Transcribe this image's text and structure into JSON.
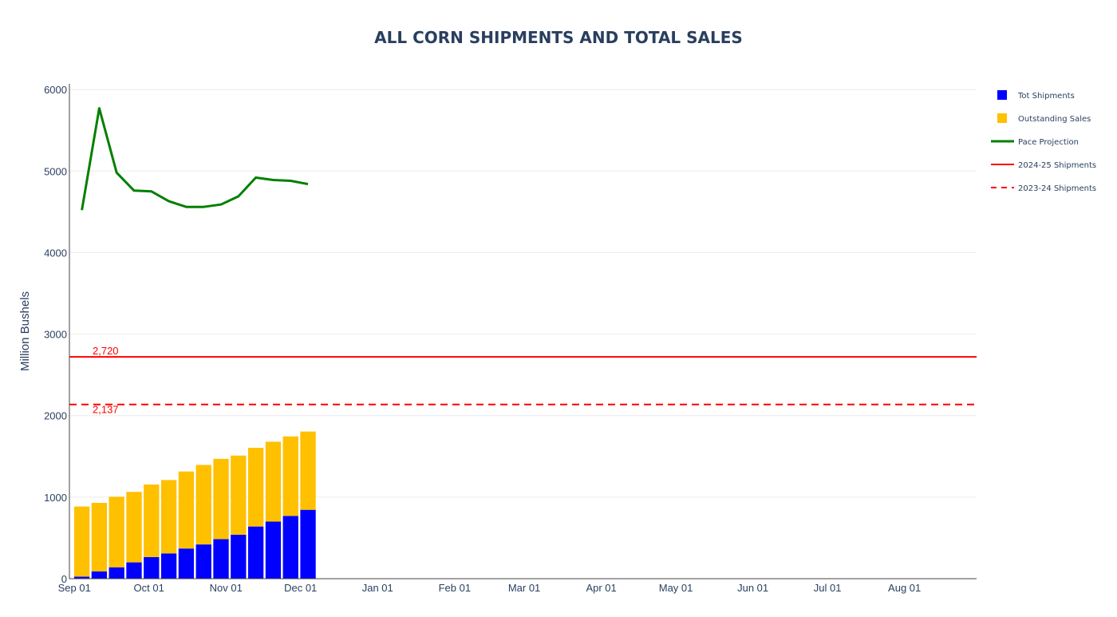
{
  "chart_data": {
    "type": "bar",
    "title": "ALL CORN SHIPMENTS AND TOTAL SALES",
    "ylabel": "Million Bushels",
    "xlabel": "",
    "ylim": [
      0,
      6070
    ],
    "xlim": [
      "2025-08-30",
      "2026-08-30"
    ],
    "barmode": "stack",
    "grid": true,
    "legend_position": "top-right",
    "y_ticks": [
      0,
      1000,
      2000,
      3000,
      4000,
      5000,
      6000
    ],
    "x_ticks": [
      {
        "date": "2025-09-01",
        "label": "Sep 01"
      },
      {
        "date": "2025-10-01",
        "label": "Oct 01"
      },
      {
        "date": "2025-11-01",
        "label": "Nov 01"
      },
      {
        "date": "2025-12-01",
        "label": "Dec 01"
      },
      {
        "date": "2026-01-01",
        "label": "Jan 01"
      },
      {
        "date": "2026-02-01",
        "label": "Feb 01"
      },
      {
        "date": "2026-03-01",
        "label": "Mar 01"
      },
      {
        "date": "2026-04-01",
        "label": "Apr 01"
      },
      {
        "date": "2026-05-01",
        "label": "May 01"
      },
      {
        "date": "2026-06-01",
        "label": "Jun 01"
      },
      {
        "date": "2026-07-01",
        "label": "Jul 01"
      },
      {
        "date": "2026-08-01",
        "label": "Aug 01"
      }
    ],
    "x": [
      "2025-09-04",
      "2025-09-11",
      "2025-09-18",
      "2025-09-25",
      "2025-10-02",
      "2025-10-09",
      "2025-10-16",
      "2025-10-23",
      "2025-10-30",
      "2025-11-06",
      "2025-11-13",
      "2025-11-20",
      "2025-11-27",
      "2025-12-04"
    ],
    "series": [
      {
        "name": "Tot Shipments",
        "type": "bar",
        "color": "#0000ff",
        "values": [
          25,
          90,
          140,
          200,
          265,
          310,
          370,
          420,
          485,
          540,
          640,
          700,
          770,
          845
        ]
      },
      {
        "name": "Outstanding Sales",
        "type": "bar",
        "color": "#ffc000",
        "values": [
          860,
          840,
          865,
          865,
          890,
          900,
          945,
          975,
          985,
          970,
          965,
          980,
          975,
          960
        ]
      },
      {
        "name": "Pace Projection",
        "type": "line",
        "color": "#008000",
        "values": [
          4520,
          5770,
          4980,
          4760,
          4750,
          4630,
          4560,
          4560,
          4590,
          4690,
          4920,
          4890,
          4880,
          4840
        ]
      }
    ],
    "reference_lines": [
      {
        "name": "2024-25 Shipments",
        "value": 2720,
        "label": "2,720",
        "color": "#ff0000",
        "dash": "solid"
      },
      {
        "name": "2023-24 Shipments",
        "value": 2137,
        "label": "2,137",
        "color": "#ff0000",
        "dash": "dashed"
      }
    ]
  }
}
